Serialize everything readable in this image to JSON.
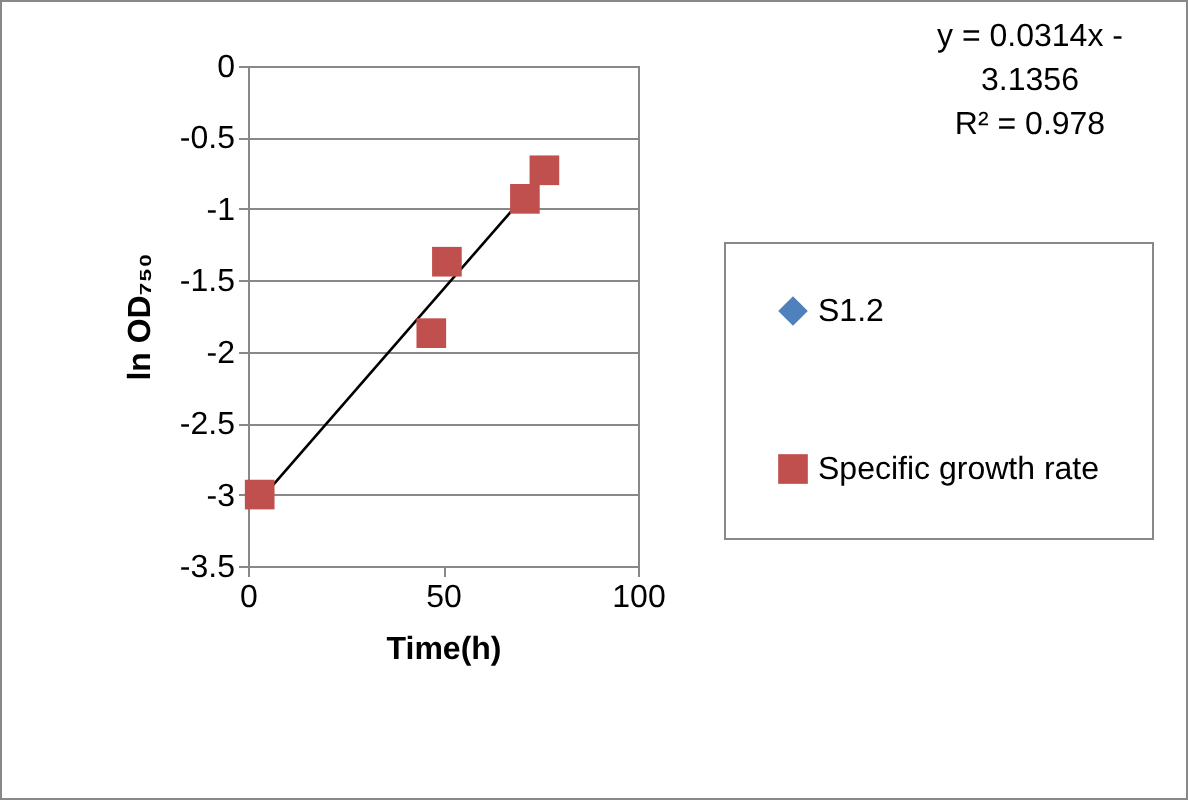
{
  "chart_data": {
    "type": "scatter",
    "xlabel": "Time(h)",
    "ylabel": "ln OD₇₅₀",
    "annotations": [
      "y = 0.0314x - 3.1356",
      "R² = 0.978"
    ],
    "x": [
      3,
      47,
      51,
      71,
      76
    ],
    "series": [
      {
        "name": "S1.2",
        "color": "#4f81bd",
        "marker": "diamond",
        "values": [
          null,
          null,
          null,
          null,
          null
        ]
      },
      {
        "name": "Specific growth rate",
        "color": "#c0504d",
        "marker": "square",
        "values": [
          -3.0,
          -1.87,
          -1.37,
          -0.93,
          -0.73
        ]
      },
      {
        "type": "line",
        "color": "#000000",
        "x": [
          3,
          76
        ],
        "values": [
          -3.04,
          -0.75
        ]
      }
    ],
    "xlim": [
      0,
      100
    ],
    "xticks": [
      0,
      50,
      100
    ],
    "ylim": [
      -3.5,
      0
    ],
    "yticks": [
      0,
      -0.5,
      -1,
      -1.5,
      -2,
      -2.5,
      -3,
      -3.5
    ],
    "grid": "y",
    "legend": "right"
  }
}
